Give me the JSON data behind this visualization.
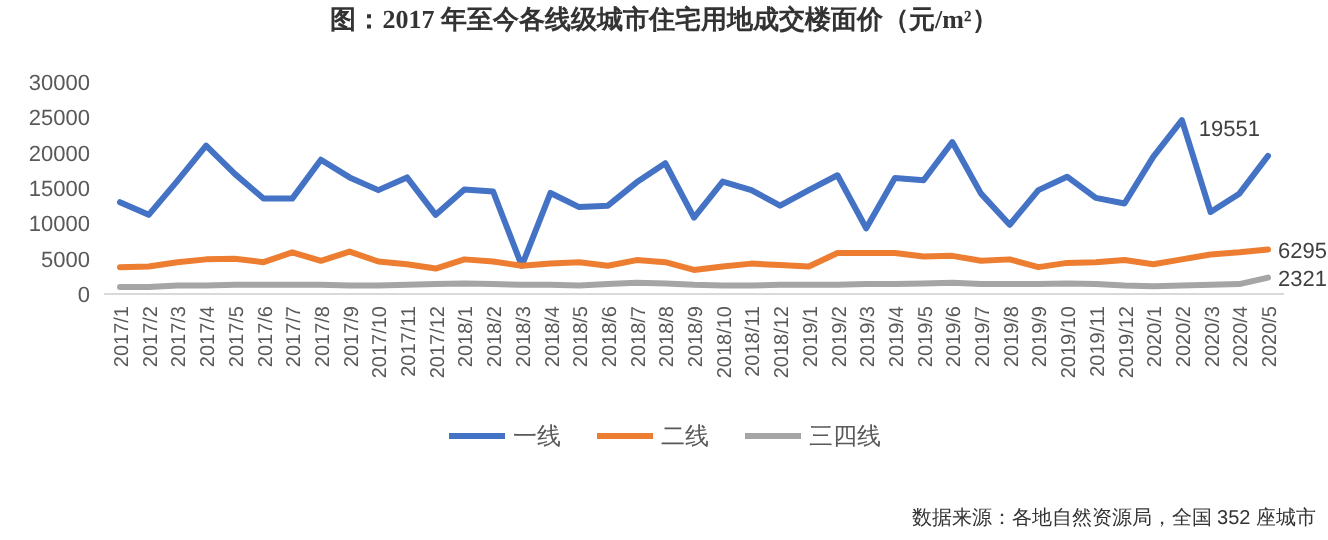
{
  "chart_data": {
    "type": "line",
    "title": "图：2017 年至今各线级城市住宅用地成交楼面价（元/m²）",
    "categories": [
      "2017/1",
      "2017/2",
      "2017/3",
      "2017/4",
      "2017/5",
      "2017/6",
      "2017/7",
      "2017/8",
      "2017/9",
      "2017/10",
      "2017/11",
      "2017/12",
      "2018/1",
      "2018/2",
      "2018/3",
      "2018/4",
      "2018/5",
      "2018/6",
      "2018/7",
      "2018/8",
      "2018/9",
      "2018/10",
      "2018/11",
      "2018/12",
      "2019/1",
      "2019/2",
      "2019/3",
      "2019/4",
      "2019/5",
      "2019/6",
      "2019/7",
      "2019/8",
      "2019/9",
      "2019/10",
      "2019/11",
      "2019/12",
      "2020/1",
      "2020/2",
      "2020/3",
      "2020/4",
      "2020/5"
    ],
    "series": [
      {
        "name": "一线",
        "color": "#4472c4",
        "values": [
          13000,
          11200,
          16000,
          21000,
          17000,
          13500,
          13500,
          19000,
          16500,
          14700,
          16500,
          11200,
          14800,
          14500,
          4000,
          14300,
          12300,
          12500,
          15800,
          18500,
          10800,
          15900,
          14700,
          12500,
          14700,
          16800,
          9300,
          16400,
          16100,
          21500,
          14200,
          9800,
          14700,
          16600,
          13600,
          12800,
          19400,
          24600,
          11600,
          14200,
          19551
        ],
        "value_labels": [
          null,
          null,
          null,
          null,
          null,
          null,
          null,
          null,
          null,
          null,
          null,
          null,
          null,
          null,
          null,
          null,
          null,
          null,
          null,
          null,
          null,
          null,
          null,
          null,
          null,
          null,
          null,
          null,
          null,
          null,
          null,
          null,
          null,
          null,
          null,
          null,
          null,
          null,
          null,
          null,
          "19551"
        ]
      },
      {
        "name": "二线",
        "color": "#ed7d31",
        "values": [
          3800,
          3900,
          4500,
          4900,
          5000,
          4500,
          5900,
          4700,
          6000,
          4600,
          4200,
          3600,
          4900,
          4600,
          4000,
          4300,
          4500,
          4000,
          4800,
          4500,
          3400,
          3900,
          4300,
          4100,
          3900,
          5800,
          5800,
          5800,
          5300,
          5400,
          4700,
          4900,
          3800,
          4400,
          4500,
          4800,
          4200,
          4900,
          5600,
          5900,
          6295
        ],
        "value_labels": [
          null,
          null,
          null,
          null,
          null,
          null,
          null,
          null,
          null,
          null,
          null,
          null,
          null,
          null,
          null,
          null,
          null,
          null,
          null,
          null,
          null,
          null,
          null,
          null,
          null,
          null,
          null,
          null,
          null,
          null,
          null,
          null,
          null,
          null,
          null,
          null,
          null,
          null,
          null,
          null,
          "6295"
        ]
      },
      {
        "name": "三四线",
        "color": "#a5a5a5",
        "values": [
          1000,
          1000,
          1200,
          1200,
          1300,
          1300,
          1300,
          1300,
          1200,
          1200,
          1300,
          1400,
          1500,
          1400,
          1300,
          1300,
          1200,
          1400,
          1600,
          1500,
          1300,
          1200,
          1200,
          1300,
          1300,
          1300,
          1400,
          1400,
          1500,
          1600,
          1400,
          1400,
          1400,
          1500,
          1400,
          1200,
          1100,
          1200,
          1300,
          1400,
          2321
        ],
        "value_labels": [
          null,
          null,
          null,
          null,
          null,
          null,
          null,
          null,
          null,
          null,
          null,
          null,
          null,
          null,
          null,
          null,
          null,
          null,
          null,
          null,
          null,
          null,
          null,
          null,
          null,
          null,
          null,
          null,
          null,
          null,
          null,
          null,
          null,
          null,
          null,
          null,
          null,
          null,
          null,
          null,
          "2321"
        ]
      }
    ],
    "ylim": [
      0,
      30000
    ],
    "yticks": [
      0,
      5000,
      10000,
      15000,
      20000,
      25000,
      30000
    ],
    "grid": false,
    "legend": "bottom",
    "marker": "none",
    "line_style": "solid",
    "annotations": [
      "数据来源：各地自然资源局，全国 352 座城市"
    ]
  }
}
